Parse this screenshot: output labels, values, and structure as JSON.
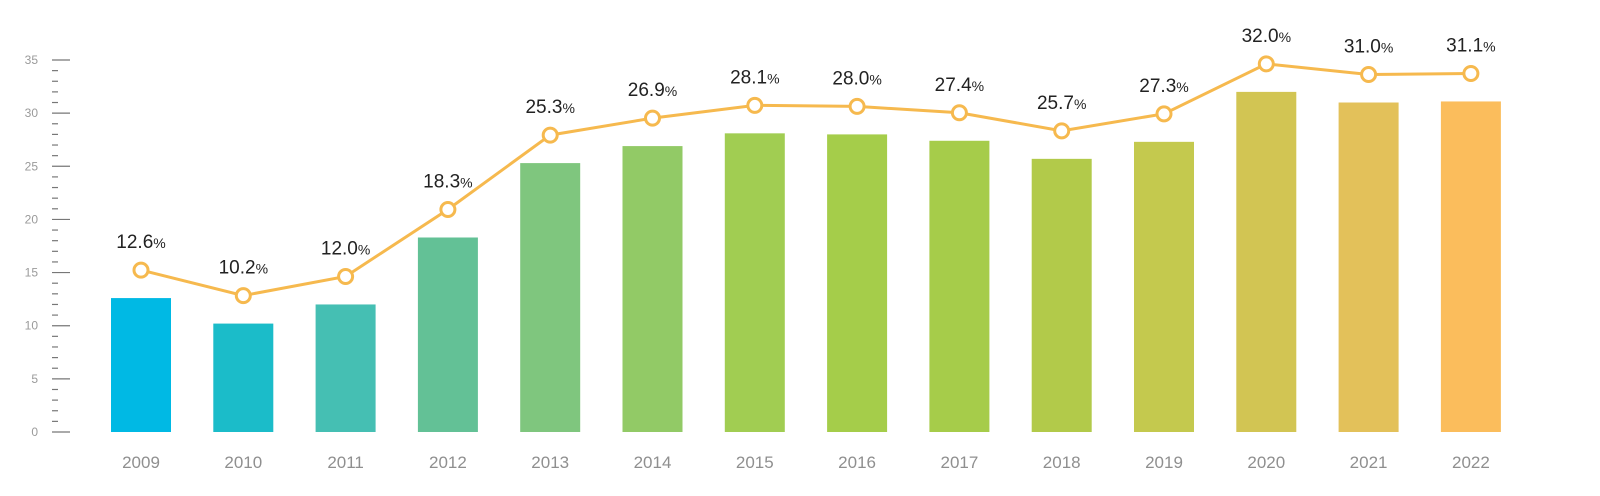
{
  "chart_data": {
    "type": "bar",
    "title": "",
    "xlabel": "",
    "ylabel": "",
    "ylim": [
      0,
      35
    ],
    "yticks": [
      0,
      5,
      10,
      15,
      20,
      25,
      30,
      35
    ],
    "grid": false,
    "categories": [
      "2009",
      "2010",
      "2011",
      "2012",
      "2013",
      "2014",
      "2015",
      "2016",
      "2017",
      "2018",
      "2019",
      "2020",
      "2021",
      "2022"
    ],
    "values": [
      12.6,
      10.2,
      12.0,
      18.3,
      25.3,
      26.9,
      28.1,
      28.0,
      27.4,
      25.7,
      27.3,
      32.0,
      31.0,
      31.1
    ],
    "data_labels": [
      "12.6",
      "10.2",
      "12.0",
      "18.3",
      "25.3",
      "26.9",
      "28.1",
      "28.0",
      "27.4",
      "25.7",
      "27.3",
      "32.0",
      "31.0",
      "31.1"
    ],
    "label_suffix": "%",
    "overlay": "line with circle markers over bars",
    "colors": {
      "bars": [
        "#00b9e4",
        "#1bbcc9",
        "#45bfb3",
        "#63c196",
        "#7fc67e",
        "#92ca66",
        "#a1cd52",
        "#a5cd4a",
        "#a6cc4a",
        "#b2ca4a",
        "#c4c94e",
        "#d2c553",
        "#e3c15a",
        "#fbbd5c"
      ],
      "line": "#f6b94e",
      "axis": "#777777"
    }
  }
}
